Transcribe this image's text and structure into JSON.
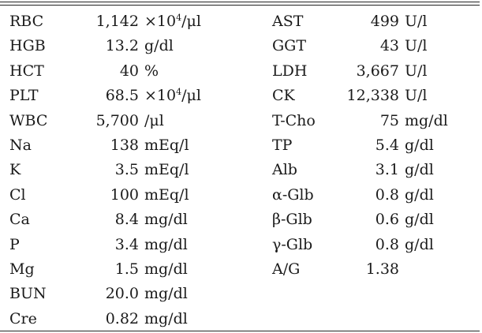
{
  "left": [
    {
      "name": "RBC",
      "value": "1,142",
      "unit_pre": "×10",
      "unit_sup": "4",
      "unit_post": "/μl"
    },
    {
      "name": "HGB",
      "value": "13.2",
      "unit_pre": "g/dl",
      "unit_sup": "",
      "unit_post": ""
    },
    {
      "name": "HCT",
      "value": "40",
      "unit_pre": "%",
      "unit_sup": "",
      "unit_post": ""
    },
    {
      "name": "PLT",
      "value": "68.5",
      "unit_pre": "×10",
      "unit_sup": "4",
      "unit_post": "/μl"
    },
    {
      "name": "WBC",
      "value": "5,700",
      "unit_pre": "/μl",
      "unit_sup": "",
      "unit_post": ""
    },
    {
      "name": "Na",
      "value": "138",
      "unit_pre": "mEq/l",
      "unit_sup": "",
      "unit_post": ""
    },
    {
      "name": "K",
      "value": "3.5",
      "unit_pre": "mEq/l",
      "unit_sup": "",
      "unit_post": ""
    },
    {
      "name": "Cl",
      "value": "100",
      "unit_pre": "mEq/l",
      "unit_sup": "",
      "unit_post": ""
    },
    {
      "name": "Ca",
      "value": "8.4",
      "unit_pre": "mg/dl",
      "unit_sup": "",
      "unit_post": ""
    },
    {
      "name": "P",
      "value": "3.4",
      "unit_pre": "mg/dl",
      "unit_sup": "",
      "unit_post": ""
    },
    {
      "name": "Mg",
      "value": "1.5",
      "unit_pre": "mg/dl",
      "unit_sup": "",
      "unit_post": ""
    },
    {
      "name": "BUN",
      "value": "20.0",
      "unit_pre": "mg/dl",
      "unit_sup": "",
      "unit_post": ""
    },
    {
      "name": "Cre",
      "value": "0.82",
      "unit_pre": "mg/dl",
      "unit_sup": "",
      "unit_post": ""
    }
  ],
  "right": [
    {
      "name": "AST",
      "value": "499",
      "unit_pre": "U/l",
      "unit_sup": "",
      "unit_post": ""
    },
    {
      "name": "GGT",
      "value": "43",
      "unit_pre": "U/l",
      "unit_sup": "",
      "unit_post": ""
    },
    {
      "name": "LDH",
      "value": "3,667",
      "unit_pre": "U/l",
      "unit_sup": "",
      "unit_post": ""
    },
    {
      "name": "CK",
      "value": "12,338",
      "unit_pre": "U/l",
      "unit_sup": "",
      "unit_post": ""
    },
    {
      "name": "T-Cho",
      "value": "75",
      "unit_pre": "mg/dl",
      "unit_sup": "",
      "unit_post": ""
    },
    {
      "name": "TP",
      "value": "5.4",
      "unit_pre": "g/dl",
      "unit_sup": "",
      "unit_post": ""
    },
    {
      "name": "Alb",
      "value": "3.1",
      "unit_pre": "g/dl",
      "unit_sup": "",
      "unit_post": ""
    },
    {
      "name": "α-Glb",
      "value": "0.8",
      "unit_pre": "g/dl",
      "unit_sup": "",
      "unit_post": ""
    },
    {
      "name": "β-Glb",
      "value": "0.6",
      "unit_pre": "g/dl",
      "unit_sup": "",
      "unit_post": ""
    },
    {
      "name": "γ-Glb",
      "value": "0.8",
      "unit_pre": "g/dl",
      "unit_sup": "",
      "unit_post": ""
    },
    {
      "name": "A/G",
      "value": "1.38",
      "unit_pre": "",
      "unit_sup": "",
      "unit_post": ""
    }
  ]
}
